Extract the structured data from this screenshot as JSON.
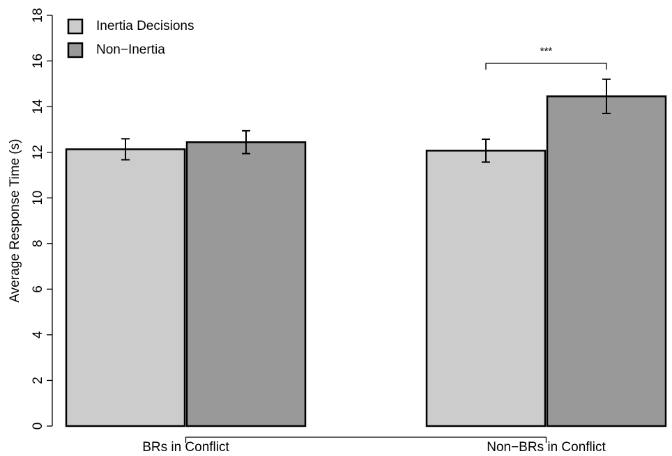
{
  "chart_data": {
    "type": "bar",
    "y_label": "Average Response Time (s)",
    "categories": [
      "BRs in Conflict",
      "Non−BRs in Conflict"
    ],
    "series": [
      {
        "name": "Inertia Decisions",
        "color": "#cccccc",
        "values": [
          12.13,
          12.07
        ],
        "errors": [
          0.46,
          0.5
        ]
      },
      {
        "name": "Non−Inertia",
        "color": "#999999",
        "values": [
          12.44,
          14.45
        ],
        "errors": [
          0.5,
          0.75
        ]
      }
    ],
    "annotation": "***",
    "ylim": [
      0,
      18
    ],
    "yticks": [
      0,
      2,
      4,
      6,
      8,
      10,
      12,
      14,
      16,
      18
    ],
    "grid": false,
    "legend": "top-left"
  }
}
